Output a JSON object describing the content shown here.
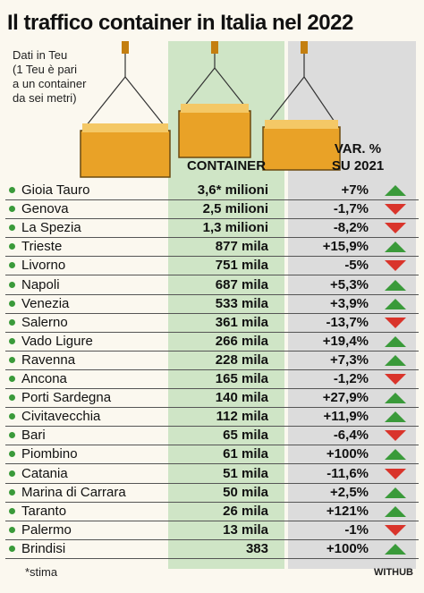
{
  "header": {
    "title": "Il traffico container in Italia nel 2022",
    "note": [
      "Dati in Teu",
      "(1 Teu è pari",
      "a un container",
      "da sei metri)"
    ]
  },
  "table": {
    "columns": {
      "container": "CONTAINER",
      "var": [
        "VAR. %",
        "SU 2021"
      ]
    },
    "rows": [
      [
        "Gioia Tauro",
        "3,6* milioni",
        "+7%"
      ],
      [
        "Genova",
        "2,5 milioni",
        "-1,7%"
      ],
      [
        "La Spezia",
        "1,3 milioni",
        "-8,2%"
      ],
      [
        "Trieste",
        "877 mila",
        "+15,9%"
      ],
      [
        "Livorno",
        "751 mila",
        "-5%"
      ],
      [
        "Napoli",
        "687 mila",
        "+5,3%"
      ],
      [
        "Venezia",
        "533 mila",
        "+3,9%"
      ],
      [
        "Salerno",
        "361 mila",
        "-13,7%"
      ],
      [
        "Vado Ligure",
        "266 mila",
        "+19,4%"
      ],
      [
        "Ravenna",
        "228 mila",
        "+7,3%"
      ],
      [
        "Ancona",
        "165 mila",
        "-1,2%"
      ],
      [
        "Porti Sardegna",
        "140 mila",
        "+27,9%"
      ],
      [
        "Civitavecchia",
        "112 mila",
        "+11,9%"
      ],
      [
        "Bari",
        "65 mila",
        "-6,4%"
      ],
      [
        "Piombino",
        "61 mila",
        "+100%"
      ],
      [
        "Catania",
        "51 mila",
        "-11,6%"
      ],
      [
        "Marina di Carrara",
        "50 mila",
        "+2,5%"
      ],
      [
        "Taranto",
        "26 mila",
        "+121%"
      ],
      [
        "Palermo",
        "13 mila",
        "-1%"
      ],
      [
        "Brindisi",
        "383",
        "+100%"
      ]
    ]
  },
  "footer": {
    "note": "*stima",
    "source": "WITHUB"
  }
}
